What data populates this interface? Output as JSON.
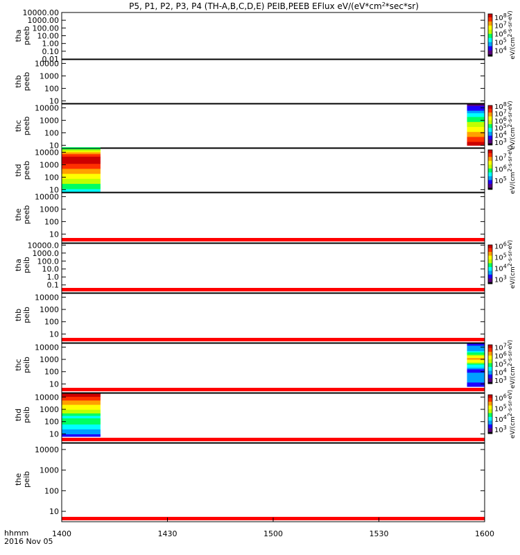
{
  "title": "P5, P1, P2, P3, P4 (TH-A,B,C,D,E) PEIB,PEEB EFlux eV/(eV*cm^2*sec*sr)",
  "colors": {
    "spectrum": [
      "#000000",
      "#5a007f",
      "#1f00ff",
      "#00a0ff",
      "#00ffff",
      "#00ff60",
      "#c0ff00",
      "#ffff00",
      "#ffa000",
      "#ff3000",
      "#cc0000"
    ],
    "band": "#ff0000"
  },
  "chart_data": {
    "type": "heatmap",
    "x_axis": {
      "range_minutes": [
        0,
        120
      ],
      "ticks": [
        {
          "minute": 0,
          "label": "1400"
        },
        {
          "minute": 30,
          "label": "1430"
        },
        {
          "minute": 60,
          "label": "1500"
        },
        {
          "minute": 90,
          "label": "1530"
        },
        {
          "minute": 120,
          "label": "1600"
        }
      ],
      "label_line1": "hhmm",
      "label_line2": "2016 Nov 05"
    },
    "panels": [
      {
        "id": "tha-peeb",
        "label1": "tha",
        "label2": "peeb",
        "yticks": [
          "10000.00",
          "1000.00",
          "100.00",
          "10.00",
          "1.00",
          "0.10",
          "0.01"
        ],
        "ylog": [
          -2,
          4
        ],
        "band": false,
        "blocks": [],
        "colorbar": {
          "ticks": [
            "10^8",
            "10^7",
            "10^6",
            "10^5",
            "10^4"
          ],
          "lmin": 3.3,
          "lmax": 8.4,
          "label": "eV/(cm^2-s-sr-eV)"
        }
      },
      {
        "id": "thb-peeb",
        "label1": "thb",
        "label2": "peeb",
        "yticks": [
          "10000",
          "1000",
          "100",
          "10"
        ],
        "ylog": [
          0.8,
          4.3
        ],
        "band": false,
        "blocks": [],
        "colorbar": null
      },
      {
        "id": "thc-peeb",
        "label1": "thc",
        "label2": "peeb",
        "yticks": [
          "10000",
          "1000",
          "100",
          "10"
        ],
        "ylog": [
          0.8,
          4.3
        ],
        "band": false,
        "blocks": [
          {
            "t0": 115,
            "t1": 120,
            "lo": 1,
            "hi": 4.3,
            "profile": [
              {
                "y": 1.0,
                "c": 10
              },
              {
                "y": 1.4,
                "c": 9
              },
              {
                "y": 1.8,
                "c": 8
              },
              {
                "y": 2.2,
                "c": 7
              },
              {
                "y": 2.6,
                "c": 6
              },
              {
                "y": 3.0,
                "c": 5
              },
              {
                "y": 3.4,
                "c": 4
              },
              {
                "y": 3.8,
                "c": 2
              },
              {
                "y": 4.3,
                "c": 1
              }
            ]
          }
        ],
        "colorbar": {
          "ticks": [
            "10^8",
            "10^7",
            "10^6",
            "10^5",
            "10^4",
            "10^3"
          ],
          "lmin": 2.6,
          "lmax": 8.1,
          "label": "eV/(cm^2-s-sr-eV)"
        }
      },
      {
        "id": "thd-peeb",
        "label1": "thd",
        "label2": "peeb",
        "yticks": [
          "10000",
          "1000",
          "100",
          "10"
        ],
        "ylog": [
          0.8,
          4.3
        ],
        "band": false,
        "blocks": [
          {
            "t0": 0,
            "t1": 11,
            "lo": 0.85,
            "hi": 4.4,
            "profile": [
              {
                "y": 0.85,
                "c": 4
              },
              {
                "y": 1.3,
                "c": 5
              },
              {
                "y": 1.7,
                "c": 6
              },
              {
                "y": 2.1,
                "c": 7
              },
              {
                "y": 2.5,
                "c": 8
              },
              {
                "y": 2.9,
                "c": 9
              },
              {
                "y": 3.3,
                "c": 10
              },
              {
                "y": 3.8,
                "c": 9
              },
              {
                "y": 4.1,
                "c": 6
              },
              {
                "y": 4.4,
                "c": 4
              }
            ]
          }
        ],
        "colorbar": {
          "ticks": [
            "10^7",
            "10^6",
            "10^5"
          ],
          "lmin": 4.2,
          "lmax": 7.7,
          "label": "eV/(cm^2-s-sr-eV)"
        }
      },
      {
        "id": "the-peeb",
        "label1": "the",
        "label2": "peeb",
        "yticks": [
          "10000",
          "1000",
          "100",
          "10"
        ],
        "ylog": [
          0.8,
          4.3
        ],
        "band": true,
        "blocks": [],
        "colorbar": null
      },
      {
        "id": "tha-peib",
        "label1": "tha",
        "label2": "peib",
        "yticks": [
          "10000.0",
          "1000.0",
          "100.0",
          "10.0",
          "1.0",
          "0.1"
        ],
        "ylog": [
          -1.2,
          4.2
        ],
        "band": true,
        "blocks": [],
        "colorbar": {
          "ticks": [
            "10^6",
            "10^5",
            "10^4",
            "10^3"
          ],
          "lmin": 2.6,
          "lmax": 6.1,
          "label": "eV/(cm^2-s-sr-eV)"
        }
      },
      {
        "id": "thb-peib",
        "label1": "thb",
        "label2": "peib",
        "yticks": [
          "10000",
          "1000",
          "100",
          "10"
        ],
        "ylog": [
          0.8,
          4.3
        ],
        "band": true,
        "blocks": [],
        "colorbar": null
      },
      {
        "id": "thc-peib",
        "label1": "thc",
        "label2": "peib",
        "yticks": [
          "10000",
          "1000",
          "100",
          "10"
        ],
        "ylog": [
          0.8,
          4.3
        ],
        "band": true,
        "blocks": [
          {
            "t0": 115,
            "t1": 120,
            "lo": 0.8,
            "hi": 4.3,
            "profile": [
              {
                "y": 0.8,
                "c": 2
              },
              {
                "y": 1.5,
                "c": 3
              },
              {
                "y": 2.1,
                "c": 2
              },
              {
                "y": 2.6,
                "c": 5
              },
              {
                "y": 3.0,
                "c": 8
              },
              {
                "y": 3.3,
                "c": 6
              },
              {
                "y": 3.7,
                "c": 3
              },
              {
                "y": 4.3,
                "c": 2
              }
            ]
          }
        ],
        "colorbar": {
          "ticks": [
            "10^7",
            "10^6",
            "10^5",
            "10^4",
            "10^3"
          ],
          "lmin": 2.6,
          "lmax": 7.3,
          "label": "eV/(cm^2-s-sr-eV)"
        }
      },
      {
        "id": "thd-peib",
        "label1": "thd",
        "label2": "peib",
        "yticks": [
          "10000",
          "1000",
          "100",
          "10"
        ],
        "ylog": [
          0.8,
          4.3
        ],
        "band": true,
        "blocks": [
          {
            "t0": 0,
            "t1": 11,
            "lo": 0.8,
            "hi": 4.3,
            "profile": [
              {
                "y": 0.8,
                "c": 2
              },
              {
                "y": 1.2,
                "c": 3
              },
              {
                "y": 1.6,
                "c": 4
              },
              {
                "y": 2.0,
                "c": 5
              },
              {
                "y": 2.4,
                "c": 4
              },
              {
                "y": 2.8,
                "c": 6
              },
              {
                "y": 3.2,
                "c": 7
              },
              {
                "y": 3.6,
                "c": 8
              },
              {
                "y": 3.9,
                "c": 9
              },
              {
                "y": 4.2,
                "c": 10
              },
              {
                "y": 4.3,
                "c": 10
              }
            ]
          }
        ],
        "colorbar": {
          "ticks": [
            "10^6",
            "10^5",
            "10^4",
            "10^3"
          ],
          "lmin": 2.6,
          "lmax": 6.3,
          "label": "eV/(cm^2-s-sr-eV)"
        }
      },
      {
        "id": "the-peib",
        "label1": "the",
        "label2": "peib",
        "yticks": [
          "10000",
          "1000",
          "100",
          "10"
        ],
        "ylog": [
          0.8,
          4.3
        ],
        "band": true,
        "blocks": [],
        "colorbar": null
      }
    ]
  }
}
